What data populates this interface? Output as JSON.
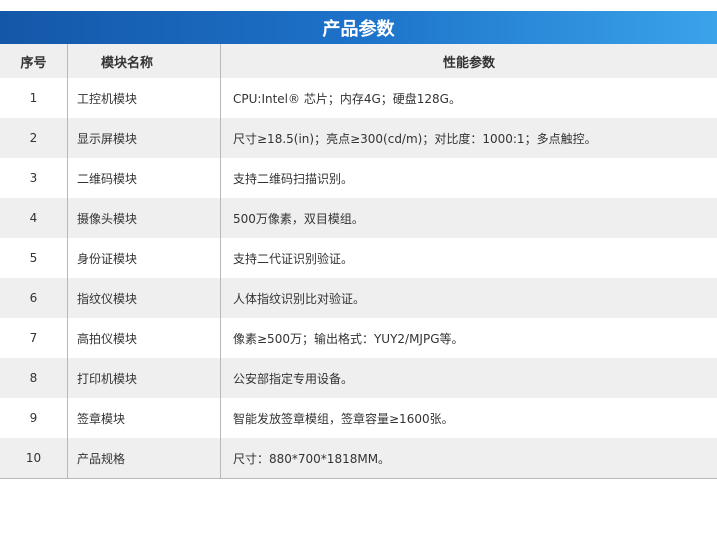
{
  "title": "产品参数",
  "headers": {
    "index": "序号",
    "module": "模块名称",
    "spec": "性能参数"
  },
  "rows": [
    {
      "index": "1",
      "module": "工控机模块",
      "spec": "CPU:Intel® 芯片；内存4G；硬盘128G。"
    },
    {
      "index": "2",
      "module": "显示屏模块",
      "spec": "尺寸≥18.5(in)；亮点≥300(cd/m)；对比度：1000:1；多点触控。"
    },
    {
      "index": "3",
      "module": "二维码模块",
      "spec": "支持二维码扫描识别。"
    },
    {
      "index": "4",
      "module": "摄像头模块",
      "spec": "500万像素，双目模组。"
    },
    {
      "index": "5",
      "module": "身份证模块",
      "spec": "支持二代证识别验证。"
    },
    {
      "index": "6",
      "module": "指纹仪模块",
      "spec": "人体指纹识别比对验证。"
    },
    {
      "index": "7",
      "module": "高拍仪模块",
      "spec": "像素≥500万；输出格式：YUY2/MJPG等。"
    },
    {
      "index": "8",
      "module": "打印机模块",
      "spec": "公安部指定专用设备。"
    },
    {
      "index": "9",
      "module": "签章模块",
      "spec": "智能发放签章模组，签章容量≥1600张。"
    },
    {
      "index": "10",
      "module": "产品规格",
      "spec": "尺寸：880*700*1818MM。"
    }
  ]
}
